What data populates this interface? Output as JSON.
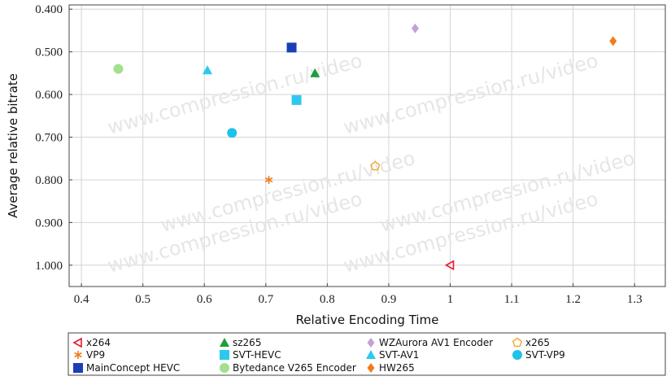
{
  "chart_data": {
    "type": "scatter",
    "xlabel": "Relative Encoding Time",
    "ylabel": "Average relative bitrate",
    "xlim": [
      0.38,
      1.35
    ],
    "ylim": [
      0.39,
      1.05
    ],
    "y_inverted": true,
    "grid": true,
    "legend_position": "bottom",
    "x_ticks": [
      "0.4",
      "0.5",
      "0.6",
      "0.7",
      "0.8",
      "0.9",
      "1",
      "1.1",
      "1.2",
      "1.3"
    ],
    "y_ticks": [
      "0.400",
      "0.500",
      "0.600",
      "0.700",
      "0.800",
      "0.900",
      "1.000"
    ],
    "watermark": "www.compression.ru/video",
    "series": [
      {
        "name": "x264",
        "marker": "triangle-left-open",
        "color": "#e8182a",
        "x": 1.0,
        "y": 1.0
      },
      {
        "name": "sz265",
        "marker": "triangle-up",
        "color": "#1e9e3a",
        "x": 0.78,
        "y": 0.55
      },
      {
        "name": "WZAurora AV1 Encoder",
        "marker": "diamond",
        "color": "#c3a2d6",
        "x": 0.943,
        "y": 0.445
      },
      {
        "name": "x265",
        "marker": "pentagon-open",
        "color": "#f4a32e",
        "x": 0.878,
        "y": 0.768
      },
      {
        "name": "VP9",
        "marker": "asterisk",
        "color": "#f07c1c",
        "x": 0.705,
        "y": 0.8
      },
      {
        "name": "SVT-HEVC",
        "marker": "square",
        "color": "#2ec8ee",
        "x": 0.75,
        "y": 0.613
      },
      {
        "name": "SVT-AV1",
        "marker": "triangle-up",
        "color": "#2ec8ee",
        "x": 0.605,
        "y": 0.543
      },
      {
        "name": "SVT-VP9",
        "marker": "circle",
        "color": "#1fc2e8",
        "x": 0.645,
        "y": 0.69
      },
      {
        "name": "MainConcept HEVC",
        "marker": "square",
        "color": "#1a3fb5",
        "x": 0.742,
        "y": 0.49
      },
      {
        "name": "Bytedance V265 Encoder",
        "marker": "circle",
        "color": "#a2e08e",
        "x": 0.46,
        "y": 0.54
      },
      {
        "name": "HW265",
        "marker": "diamond",
        "color": "#f07c1c",
        "x": 1.265,
        "y": 0.475
      }
    ]
  }
}
